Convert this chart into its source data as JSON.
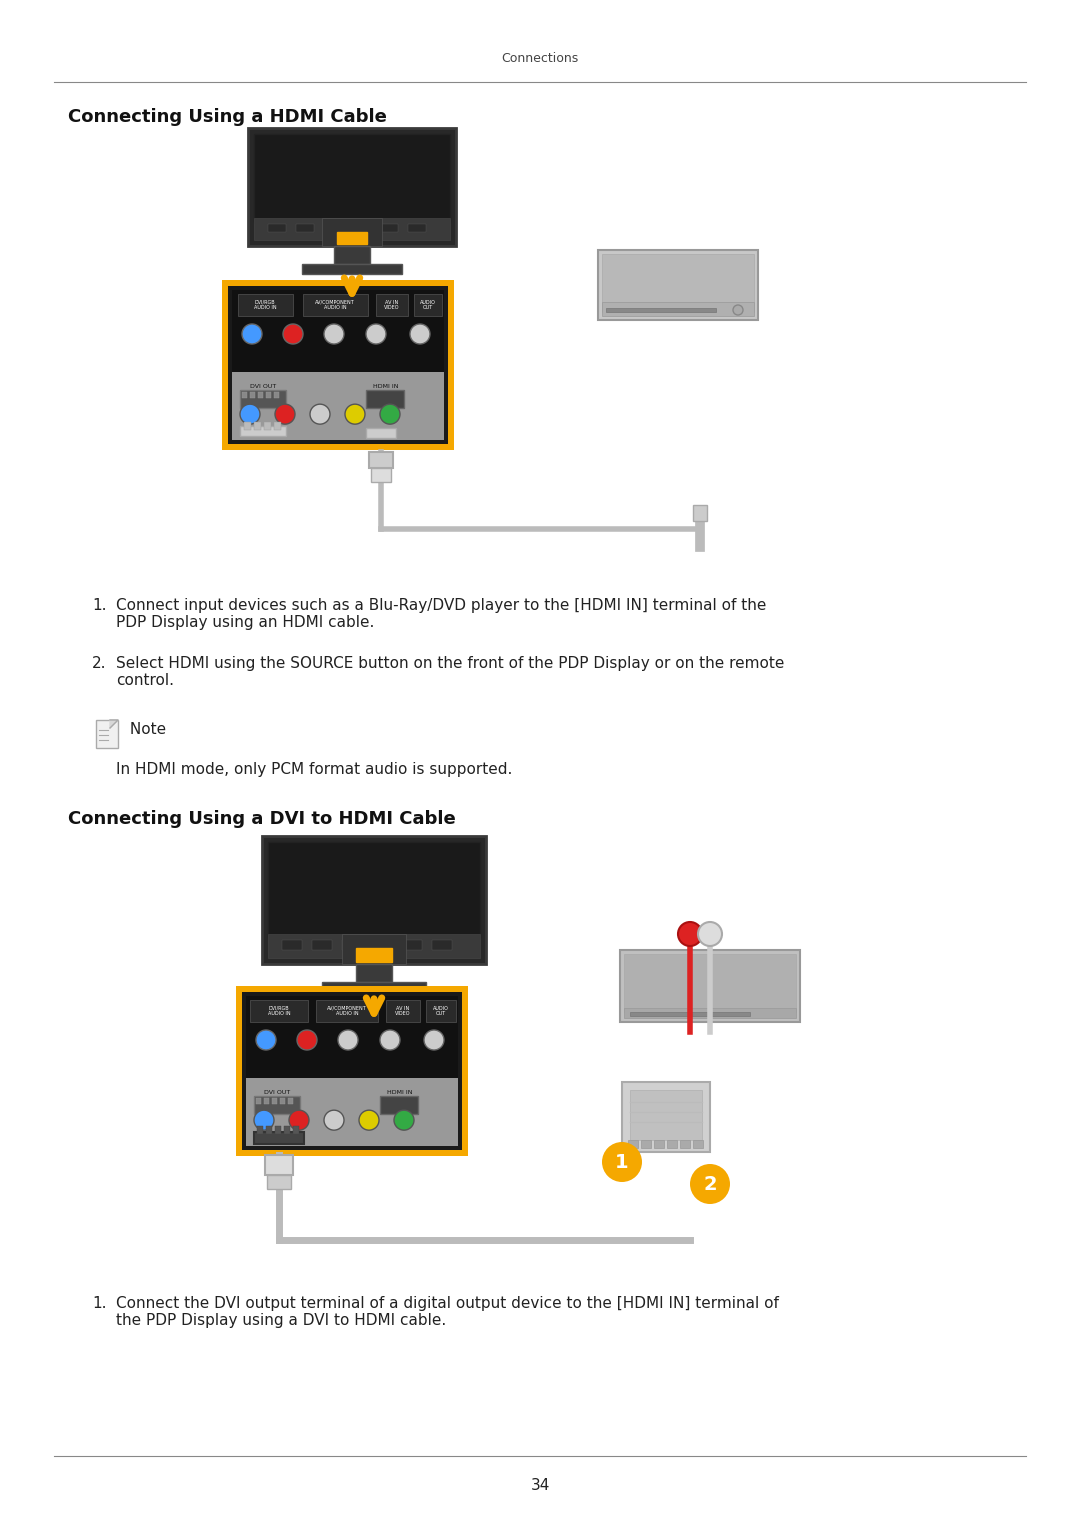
{
  "page_title": "Connections",
  "section1_title": "Connecting Using a HDMI Cable",
  "section2_title": "Connecting Using a DVI to HDMI Cable",
  "step1_text1": "Connect input devices such as a Blu-Ray/DVD player to the [HDMI IN] terminal of the\nPDP Display using an HDMI cable.",
  "step1_text2": "Select HDMI using the SOURCE button on the front of the PDP Display or on the remote\ncontrol.",
  "note_label": " Note",
  "note_text": "In HDMI mode, only PCM format audio is supported.",
  "step2_text1": "Connect the DVI output terminal of a digital output device to the [HDMI IN] terminal of\nthe PDP Display using a DVI to HDMI cable.",
  "page_number": "34",
  "bg_color": "#ffffff",
  "text_color": "#222222",
  "section_title_color": "#111111",
  "panel_border_color": "#f5a800",
  "panel_bg_top": "#1e1e1e",
  "panel_bg_bot": "#888888",
  "arrow_color": "#f5a800",
  "cable_color": "#bbbbbb",
  "tv_color": "#2d2d2d",
  "tv_edge": "#444444",
  "dvd_color": "#b0b0b0",
  "dvd_edge": "#888888",
  "port_blue": "#4499ff",
  "port_red": "#dd2222",
  "port_white": "#cccccc",
  "port_yellow": "#ddcc00",
  "port_green": "#33aa44",
  "header_line_color": "#888888",
  "bottom_line_color": "#888888"
}
